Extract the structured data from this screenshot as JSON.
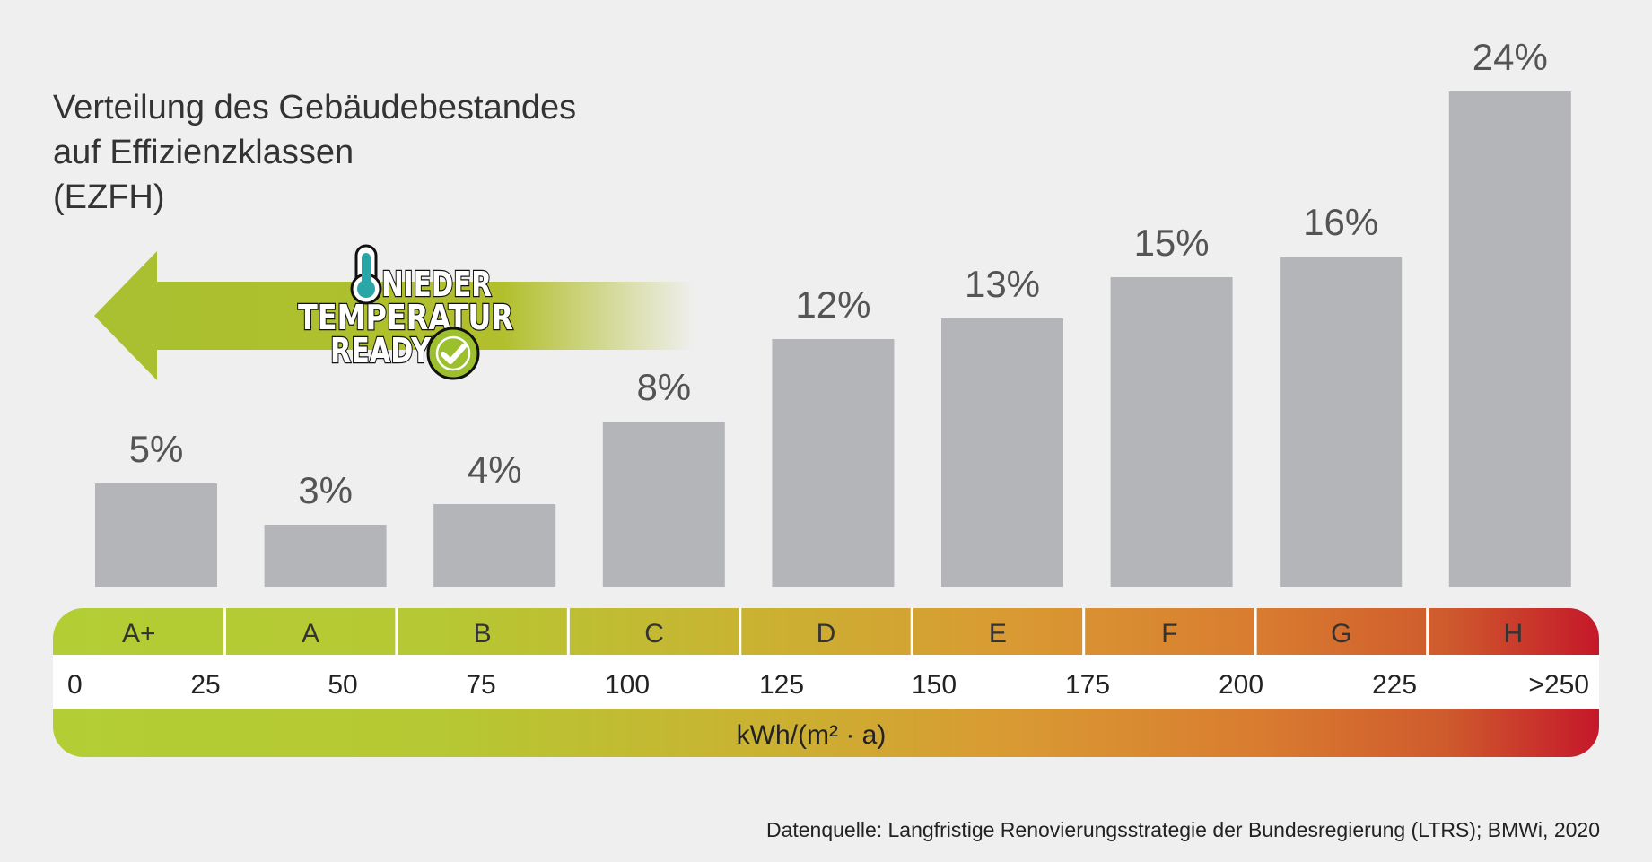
{
  "title_lines": [
    "Verteilung des Gebäudebestandes",
    "auf Effizienzklassen",
    "(EZFH)"
  ],
  "badge": {
    "line1": "NIEDER",
    "line2": "TEMPERATUR",
    "line3": "READY",
    "icons": [
      "thermometer-icon",
      "checkmark-icon"
    ]
  },
  "source": "Datenquelle: Langfristige Renovierungsstrategie der Bundesregierung (LTRS); BMWi, 2020",
  "colors": {
    "bar": "#b4b5b8",
    "green": "#b3c832",
    "arrow": "#a9c030",
    "yellow": "#c8b030",
    "orange": "#d98431",
    "red": "#c5182a"
  },
  "chart_data": {
    "type": "bar",
    "categories": [
      "A+",
      "A",
      "B",
      "C",
      "D",
      "E",
      "F",
      "G",
      "H"
    ],
    "values": [
      5,
      3,
      4,
      8,
      12,
      13,
      15,
      16,
      24
    ],
    "value_labels": [
      "5%",
      "3%",
      "4%",
      "8%",
      "12%",
      "13%",
      "15%",
      "16%",
      "24%"
    ],
    "ylim": [
      0,
      24
    ],
    "scale_ticks": [
      "0",
      "25",
      "50",
      "75",
      "100",
      "125",
      "150",
      "175",
      "200",
      "225",
      ">250"
    ],
    "xlabel": "kWh/(m² · a)",
    "ylabel": "",
    "grid": false
  }
}
